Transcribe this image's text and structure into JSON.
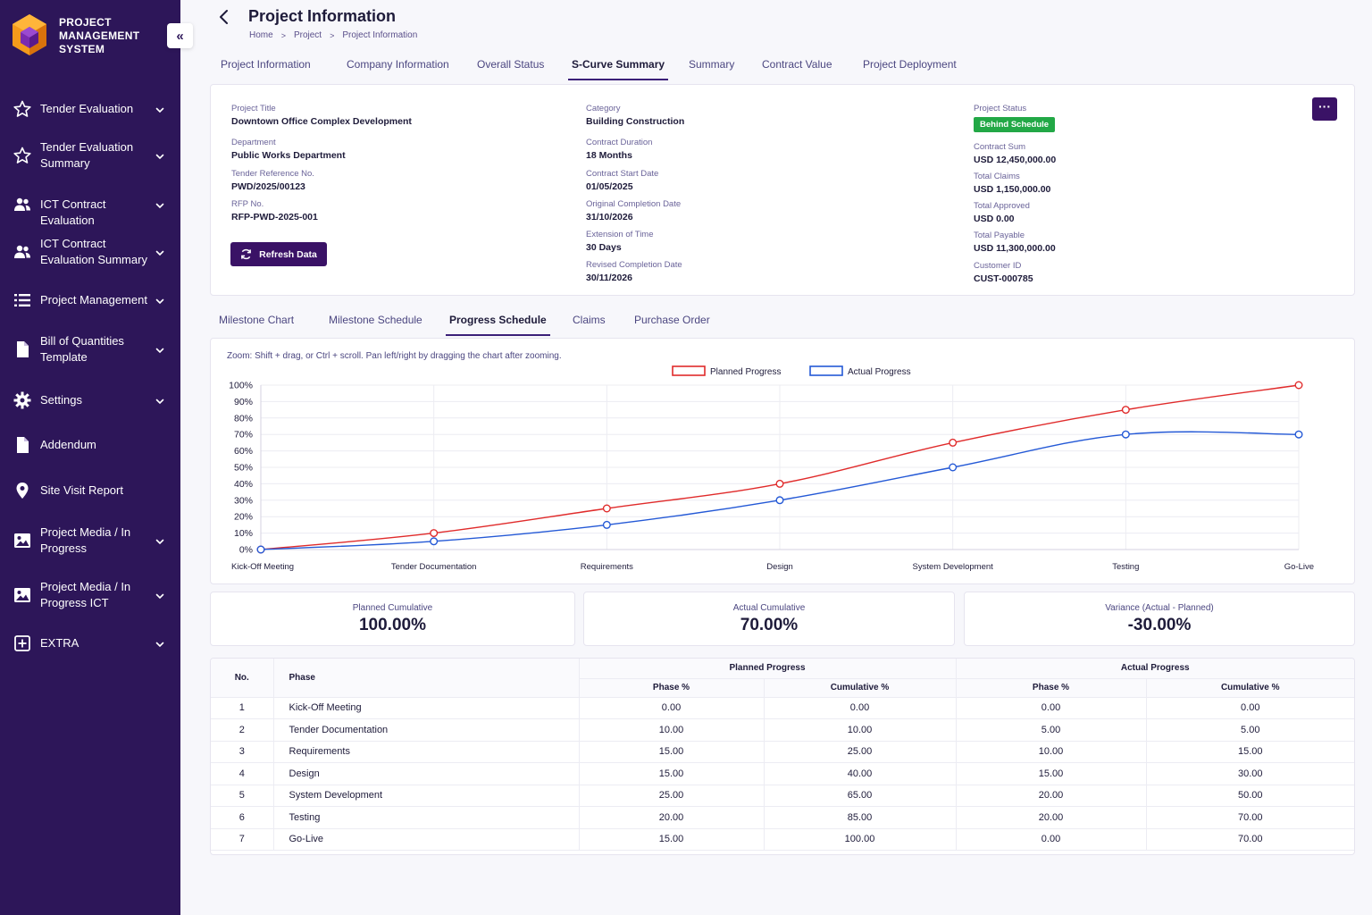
{
  "brand": {
    "line1": "PROJECT",
    "line2": "MANAGEMENT",
    "line3": "SYSTEM"
  },
  "sidebar": {
    "items": [
      {
        "label": "Tender Evaluation",
        "icon": "star-icon",
        "expandable": true
      },
      {
        "label": "Tender Evaluation Summary",
        "icon": "star-icon",
        "expandable": true
      },
      {
        "label": "ICT Contract Evaluation",
        "icon": "users-icon",
        "expandable": true
      },
      {
        "label": "ICT Contract Evaluation Summary",
        "icon": "users-icon",
        "expandable": true
      },
      {
        "label": "Project Management",
        "icon": "list-icon",
        "expandable": true
      },
      {
        "label": "Bill of Quantities Template",
        "icon": "document-icon",
        "expandable": true
      },
      {
        "label": "Settings",
        "icon": "gear-icon",
        "expandable": true
      },
      {
        "label": "Addendum",
        "icon": "document-icon",
        "expandable": false
      },
      {
        "label": "Site Visit Report",
        "icon": "map-pin-icon",
        "expandable": false
      },
      {
        "label": "Project Media / In Progress",
        "icon": "image-icon",
        "expandable": true
      },
      {
        "label": "Project Media / In Progress ICT",
        "icon": "image-icon",
        "expandable": true
      },
      {
        "label": "EXTRA",
        "icon": "plus-square-icon",
        "expandable": true
      }
    ]
  },
  "header": {
    "title": "Project Information",
    "breadcrumb": [
      "Home",
      "Project",
      "Project Information"
    ]
  },
  "tabs": [
    {
      "label": "Project Information",
      "active": false
    },
    {
      "label": "Company Information",
      "active": false
    },
    {
      "label": "Overall Status",
      "active": false
    },
    {
      "label": "S-Curve Summary",
      "active": true
    },
    {
      "label": "Summary",
      "active": false
    },
    {
      "label": "Contract Value",
      "active": false
    },
    {
      "label": "Project Deployment",
      "active": false
    }
  ],
  "info": {
    "col1": [
      {
        "label": "Project Title",
        "value": "Downtown Office Complex Development"
      },
      {
        "label": "Department",
        "value": "Public Works Department"
      },
      {
        "label": "Tender Reference No.",
        "value": "PWD/2025/00123"
      },
      {
        "label": "RFP No.",
        "value": "RFP-PWD-2025-001"
      }
    ],
    "col2": [
      {
        "label": "Category",
        "value": "Building Construction"
      },
      {
        "label": "Contract Duration",
        "value": "18 Months"
      },
      {
        "label": "Contract Start Date",
        "value": "01/05/2025"
      },
      {
        "label": "Original Completion Date",
        "value": "31/10/2026"
      },
      {
        "label": "Extension of Time",
        "value": "30 Days"
      },
      {
        "label": "Revised Completion Date",
        "value": "30/11/2026"
      }
    ],
    "status_label": "Project Status",
    "status_value": "Behind Schedule",
    "status_color": "#22a846",
    "col3": [
      {
        "label": "Contract Sum",
        "value": "USD 12,450,000.00"
      },
      {
        "label": "Total Claims",
        "value": "USD 1,150,000.00"
      },
      {
        "label": "Total Approved",
        "value": "USD 0.00"
      },
      {
        "label": "Total Payable",
        "value": "USD 11,300,000.00"
      },
      {
        "label": "Customer ID",
        "value": "CUST-000785"
      }
    ],
    "refresh_label": "Refresh Data",
    "more_label": "···"
  },
  "subtabs": [
    {
      "label": "Milestone Chart",
      "active": false
    },
    {
      "label": "Milestone Schedule",
      "active": false
    },
    {
      "label": "Progress Schedule",
      "active": true
    },
    {
      "label": "Claims",
      "active": false
    },
    {
      "label": "Purchase Order",
      "active": false
    }
  ],
  "chart_hint": "Zoom: Shift + drag, or Ctrl + scroll. Pan left/right by dragging the chart after zooming.",
  "chart_data": {
    "type": "line",
    "categories": [
      "Kick-Off Meeting",
      "Tender Documentation",
      "Requirements",
      "Design",
      "System Development",
      "Testing",
      "Go-Live"
    ],
    "series": [
      {
        "name": "Planned Progress",
        "color": "#e02b2b",
        "values": [
          0,
          10,
          25,
          40,
          65,
          85,
          100
        ]
      },
      {
        "name": "Actual Progress",
        "color": "#2459d6",
        "values": [
          0,
          5,
          15,
          30,
          50,
          70,
          70
        ]
      }
    ],
    "ylim": [
      0,
      100
    ],
    "yticks": [
      "0%",
      "10%",
      "20%",
      "30%",
      "40%",
      "50%",
      "60%",
      "70%",
      "80%",
      "90%",
      "100%"
    ],
    "grid": true,
    "legend": "top-center"
  },
  "stats": [
    {
      "label": "Planned Cumulative",
      "value": "100.00%"
    },
    {
      "label": "Actual Cumulative",
      "value": "70.00%"
    },
    {
      "label": "Variance (Actual - Planned)",
      "value": "-30.00%"
    }
  ],
  "table": {
    "headers": {
      "no": "No.",
      "phase": "Phase",
      "planned": "Planned Progress",
      "actual": "Actual Progress",
      "phase_pct": "Phase %",
      "cum_pct": "Cumulative %"
    },
    "rows": [
      [
        "1",
        "Kick-Off Meeting",
        "0.00",
        "0.00",
        "0.00",
        "0.00"
      ],
      [
        "2",
        "Tender Documentation",
        "10.00",
        "10.00",
        "5.00",
        "5.00"
      ],
      [
        "3",
        "Requirements",
        "15.00",
        "25.00",
        "10.00",
        "15.00"
      ],
      [
        "4",
        "Design",
        "15.00",
        "40.00",
        "15.00",
        "30.00"
      ],
      [
        "5",
        "System Development",
        "25.00",
        "65.00",
        "20.00",
        "50.00"
      ],
      [
        "6",
        "Testing",
        "20.00",
        "85.00",
        "20.00",
        "70.00"
      ],
      [
        "7",
        "Go-Live",
        "15.00",
        "100.00",
        "0.00",
        "70.00"
      ]
    ]
  }
}
